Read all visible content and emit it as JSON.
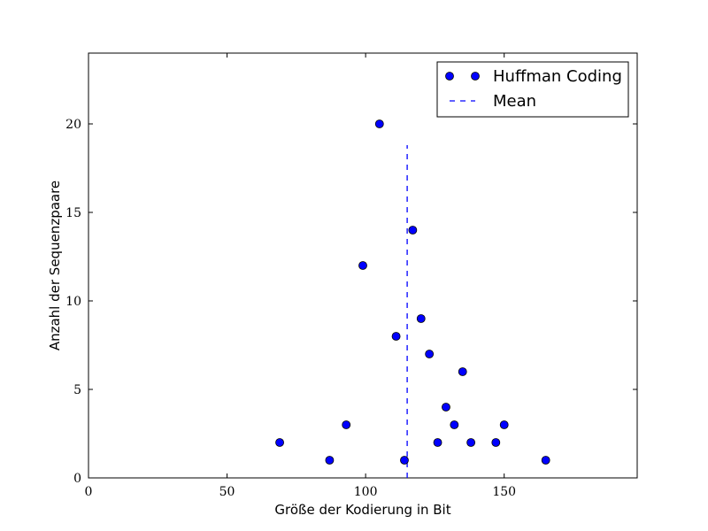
{
  "chart_data": {
    "type": "scatter",
    "title": "",
    "xlabel": "Größe der Kodierung in Bit",
    "ylabel": "Anzahl der Sequenzpaare",
    "xlim": [
      0,
      198
    ],
    "ylim": [
      0,
      24
    ],
    "xticks": [
      0,
      50,
      100,
      150
    ],
    "yticks": [
      0,
      5,
      10,
      15,
      20
    ],
    "grid": false,
    "legend_position": "top-right",
    "series": [
      {
        "name": "Huffman Coding",
        "color": "#0000ff",
        "marker": "circle",
        "points": [
          {
            "x": 69,
            "y": 2
          },
          {
            "x": 87,
            "y": 1
          },
          {
            "x": 93,
            "y": 3
          },
          {
            "x": 99,
            "y": 12
          },
          {
            "x": 105,
            "y": 20
          },
          {
            "x": 111,
            "y": 8
          },
          {
            "x": 114,
            "y": 1
          },
          {
            "x": 117,
            "y": 14
          },
          {
            "x": 120,
            "y": 9
          },
          {
            "x": 123,
            "y": 7
          },
          {
            "x": 126,
            "y": 2
          },
          {
            "x": 129,
            "y": 4
          },
          {
            "x": 132,
            "y": 3
          },
          {
            "x": 135,
            "y": 6
          },
          {
            "x": 138,
            "y": 2
          },
          {
            "x": 147,
            "y": 2
          },
          {
            "x": 150,
            "y": 3
          },
          {
            "x": 165,
            "y": 1
          }
        ]
      },
      {
        "name": "Mean",
        "color": "#0000ff",
        "style": "dashed",
        "x": 115,
        "y_range": [
          0,
          18.8
        ]
      }
    ]
  }
}
